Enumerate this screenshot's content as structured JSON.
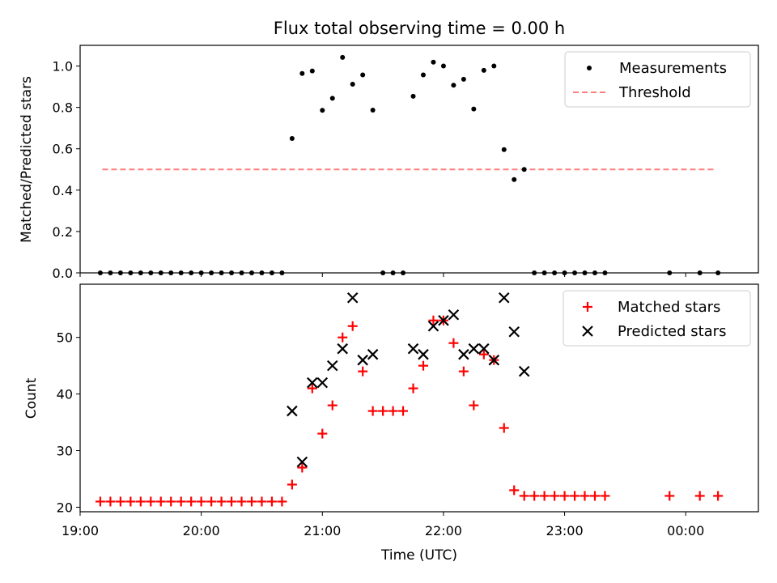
{
  "chart_data": [
    {
      "type": "scatter",
      "title": "Flux total observing time = 0.00 h",
      "xlabel": "",
      "ylabel": "Matched/Predicted stars",
      "ylim": [
        0,
        1.1
      ],
      "xlim": [
        "19:00",
        "00:36"
      ],
      "yticks": [
        "0.0",
        "0.2",
        "0.4",
        "0.6",
        "0.8",
        "1.0"
      ],
      "legend_position": "top-right",
      "series": [
        {
          "name": "Measurements",
          "marker": "dot",
          "color": "#000000",
          "points": [
            [
              "19:10",
              0.0
            ],
            [
              "19:15",
              0.0
            ],
            [
              "19:20",
              0.0
            ],
            [
              "19:25",
              0.0
            ],
            [
              "19:30",
              0.0
            ],
            [
              "19:35",
              0.0
            ],
            [
              "19:40",
              0.0
            ],
            [
              "19:45",
              0.0
            ],
            [
              "19:50",
              0.0
            ],
            [
              "19:55",
              0.0
            ],
            [
              "20:00",
              0.0
            ],
            [
              "20:05",
              0.0
            ],
            [
              "20:10",
              0.0
            ],
            [
              "20:15",
              0.0
            ],
            [
              "20:20",
              0.0
            ],
            [
              "20:25",
              0.0
            ],
            [
              "20:30",
              0.0
            ],
            [
              "20:35",
              0.0
            ],
            [
              "20:40",
              0.0
            ],
            [
              "20:45",
              0.65
            ],
            [
              "20:50",
              0.964
            ],
            [
              "20:55",
              0.976
            ],
            [
              "21:00",
              0.786
            ],
            [
              "21:05",
              0.844
            ],
            [
              "21:10",
              1.042
            ],
            [
              "21:15",
              0.912
            ],
            [
              "21:20",
              0.957
            ],
            [
              "21:25",
              0.787
            ],
            [
              "21:30",
              0.0
            ],
            [
              "21:35",
              0.0
            ],
            [
              "21:40",
              0.0
            ],
            [
              "21:45",
              0.854
            ],
            [
              "21:50",
              0.957
            ],
            [
              "21:55",
              1.019
            ],
            [
              "22:00",
              1.0
            ],
            [
              "22:05",
              0.907
            ],
            [
              "22:10",
              0.936
            ],
            [
              "22:15",
              0.792
            ],
            [
              "22:20",
              0.979
            ],
            [
              "22:25",
              1.0
            ],
            [
              "22:30",
              0.596
            ],
            [
              "22:35",
              0.451
            ],
            [
              "22:40",
              0.5
            ],
            [
              "22:45",
              0.0
            ],
            [
              "22:50",
              0.0
            ],
            [
              "22:55",
              0.0
            ],
            [
              "23:00",
              0.0
            ],
            [
              "23:05",
              0.0
            ],
            [
              "23:10",
              0.0
            ],
            [
              "23:15",
              0.0
            ],
            [
              "23:20",
              0.0
            ],
            [
              "23:52",
              0.0
            ],
            [
              "00:07",
              0.0
            ],
            [
              "00:16",
              0.0
            ]
          ]
        },
        {
          "name": "Threshold",
          "marker": "dashed-line",
          "color": "#ff7f7f",
          "points": [
            [
              "19:11",
              0.5
            ],
            [
              "00:14",
              0.5
            ]
          ]
        }
      ]
    },
    {
      "type": "scatter",
      "title": "",
      "xlabel": "Time (UTC)",
      "ylabel": "Count",
      "ylim": [
        19.2,
        59.4
      ],
      "xlim": [
        "19:00",
        "00:36"
      ],
      "yticks": [
        "20",
        "30",
        "40",
        "50"
      ],
      "xticks": [
        "19:00",
        "20:00",
        "21:00",
        "22:00",
        "23:00",
        "00:00"
      ],
      "legend_position": "top-right",
      "series": [
        {
          "name": "Matched stars",
          "marker": "plus",
          "color": "#ff0000",
          "points": [
            [
              "19:10",
              21
            ],
            [
              "19:15",
              21
            ],
            [
              "19:20",
              21
            ],
            [
              "19:25",
              21
            ],
            [
              "19:30",
              21
            ],
            [
              "19:35",
              21
            ],
            [
              "19:40",
              21
            ],
            [
              "19:45",
              21
            ],
            [
              "19:50",
              21
            ],
            [
              "19:55",
              21
            ],
            [
              "20:00",
              21
            ],
            [
              "20:05",
              21
            ],
            [
              "20:10",
              21
            ],
            [
              "20:15",
              21
            ],
            [
              "20:20",
              21
            ],
            [
              "20:25",
              21
            ],
            [
              "20:30",
              21
            ],
            [
              "20:35",
              21
            ],
            [
              "20:40",
              21
            ],
            [
              "20:45",
              24
            ],
            [
              "20:50",
              27
            ],
            [
              "20:55",
              41
            ],
            [
              "21:00",
              33
            ],
            [
              "21:05",
              38
            ],
            [
              "21:10",
              50
            ],
            [
              "21:15",
              52
            ],
            [
              "21:20",
              44
            ],
            [
              "21:25",
              37
            ],
            [
              "21:30",
              37
            ],
            [
              "21:35",
              37
            ],
            [
              "21:40",
              37
            ],
            [
              "21:45",
              41
            ],
            [
              "21:50",
              45
            ],
            [
              "21:55",
              53
            ],
            [
              "22:00",
              53
            ],
            [
              "22:05",
              49
            ],
            [
              "22:10",
              44
            ],
            [
              "22:15",
              38
            ],
            [
              "22:20",
              47
            ],
            [
              "22:25",
              46
            ],
            [
              "22:30",
              34
            ],
            [
              "22:35",
              23
            ],
            [
              "22:40",
              22
            ],
            [
              "22:45",
              22
            ],
            [
              "22:50",
              22
            ],
            [
              "22:55",
              22
            ],
            [
              "23:00",
              22
            ],
            [
              "23:05",
              22
            ],
            [
              "23:10",
              22
            ],
            [
              "23:15",
              22
            ],
            [
              "23:20",
              22
            ],
            [
              "23:52",
              22
            ],
            [
              "00:07",
              22
            ],
            [
              "00:16",
              22
            ]
          ]
        },
        {
          "name": "Predicted stars",
          "marker": "x",
          "color": "#000000",
          "points": [
            [
              "20:45",
              37
            ],
            [
              "20:50",
              28
            ],
            [
              "20:55",
              42
            ],
            [
              "21:00",
              42
            ],
            [
              "21:05",
              45
            ],
            [
              "21:10",
              48
            ],
            [
              "21:15",
              57
            ],
            [
              "21:20",
              46
            ],
            [
              "21:25",
              47
            ],
            [
              "21:45",
              48
            ],
            [
              "21:50",
              47
            ],
            [
              "21:55",
              52
            ],
            [
              "22:00",
              53
            ],
            [
              "22:05",
              54
            ],
            [
              "22:10",
              47
            ],
            [
              "22:15",
              48
            ],
            [
              "22:20",
              48
            ],
            [
              "22:25",
              46
            ],
            [
              "22:30",
              57
            ],
            [
              "22:35",
              51
            ],
            [
              "22:40",
              44
            ]
          ]
        }
      ]
    }
  ]
}
